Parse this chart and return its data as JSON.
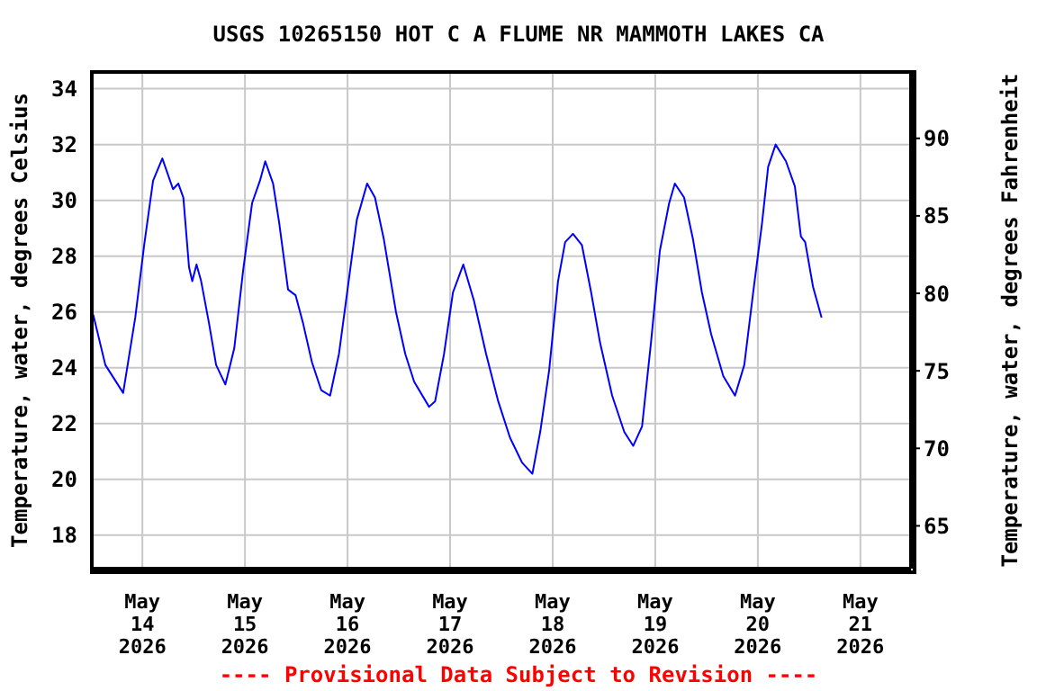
{
  "chart_data": {
    "type": "line",
    "title": "USGS 10265150 HOT C A FLUME NR MAMMOTH LAKES CA",
    "ylabel": "Temperature, water, degrees Celsius",
    "y2label": "Temperature, water, degrees Fahrenheit",
    "annotations": [
      "---- Provisional Data Subject to Revision ----"
    ],
    "x": [
      "2026-05-13T12:30",
      "2026-05-13T15:20",
      "2026-05-13T19:30",
      "2026-05-13T22:20",
      "2026-05-14T00:25",
      "2026-05-14T02:30",
      "2026-05-14T04:40",
      "2026-05-14T07:10",
      "2026-05-14T08:25",
      "2026-05-14T09:35",
      "2026-05-14T10:55",
      "2026-05-14T11:40",
      "2026-05-14T12:40",
      "2026-05-14T13:45",
      "2026-05-14T15:35",
      "2026-05-14T17:15",
      "2026-05-14T19:25",
      "2026-05-14T21:30",
      "2026-05-14T23:35",
      "2026-05-15T01:40",
      "2026-05-15T03:30",
      "2026-05-15T04:45",
      "2026-05-15T06:35",
      "2026-05-15T08:00",
      "2026-05-15T10:05",
      "2026-05-15T11:50",
      "2026-05-15T13:35",
      "2026-05-15T15:40",
      "2026-05-15T17:50",
      "2026-05-15T19:55",
      "2026-05-15T22:00",
      "2026-05-16T00:05",
      "2026-05-16T02:10",
      "2026-05-16T04:35",
      "2026-05-16T06:25",
      "2026-05-16T08:30",
      "2026-05-16T11:20",
      "2026-05-16T13:30",
      "2026-05-16T15:35",
      "2026-05-16T19:05",
      "2026-05-16T20:30",
      "2026-05-16T22:35",
      "2026-05-17T00:40",
      "2026-05-17T03:05",
      "2026-05-17T05:35",
      "2026-05-17T08:25",
      "2026-05-17T11:15",
      "2026-05-17T14:00",
      "2026-05-17T16:50",
      "2026-05-17T19:15",
      "2026-05-17T21:05",
      "2026-05-17T23:10",
      "2026-05-18T01:15",
      "2026-05-18T02:55",
      "2026-05-18T04:45",
      "2026-05-18T06:50",
      "2026-05-18T09:00",
      "2026-05-18T11:05",
      "2026-05-18T13:55",
      "2026-05-18T16:45",
      "2026-05-18T18:50",
      "2026-05-18T20:55",
      "2026-05-18T23:00",
      "2026-05-19T01:05",
      "2026-05-19T03:15",
      "2026-05-19T04:35",
      "2026-05-19T06:45",
      "2026-05-19T08:50",
      "2026-05-19T10:55",
      "2026-05-19T13:05",
      "2026-05-19T15:55",
      "2026-05-19T18:40",
      "2026-05-19T20:50",
      "2026-05-19T22:55",
      "2026-05-20T01:00",
      "2026-05-20T02:25",
      "2026-05-20T04:10",
      "2026-05-20T06:35",
      "2026-05-20T08:40",
      "2026-05-20T10:05",
      "2026-05-20T11:05",
      "2026-05-20T12:55",
      "2026-05-20T14:55"
    ],
    "series": [
      {
        "color": "#0000ff",
        "values": [
          25.9,
          24.1,
          23.1,
          25.8,
          28.4,
          30.7,
          31.5,
          30.4,
          30.6,
          30.1,
          27.6,
          27.1,
          27.7,
          27.1,
          25.6,
          24.1,
          23.4,
          24.7,
          27.5,
          29.9,
          30.7,
          31.4,
          30.6,
          29.2,
          26.8,
          26.6,
          25.6,
          24.2,
          23.2,
          23.0,
          24.5,
          26.9,
          29.3,
          30.6,
          30.1,
          28.6,
          26.0,
          24.5,
          23.5,
          22.6,
          22.8,
          24.5,
          26.7,
          27.7,
          26.4,
          24.5,
          22.8,
          21.5,
          20.6,
          20.2,
          21.7,
          23.9,
          27.1,
          28.5,
          28.8,
          28.4,
          26.7,
          24.9,
          23.0,
          21.7,
          21.2,
          21.9,
          24.9,
          28.2,
          29.9,
          30.6,
          30.1,
          28.6,
          26.7,
          25.2,
          23.7,
          23.0,
          24.1,
          26.7,
          29.2,
          31.2,
          32.0,
          31.4,
          30.5,
          28.7,
          28.5,
          26.9,
          25.8
        ]
      }
    ],
    "xlim": [
      "2026-05-13T12:10",
      "2026-05-21T11:50"
    ],
    "xticks": [
      {
        "value": "2026-05-14",
        "label": "May 14 2026"
      },
      {
        "value": "2026-05-15",
        "label": "May 15 2026"
      },
      {
        "value": "2026-05-16",
        "label": "May 16 2026"
      },
      {
        "value": "2026-05-17",
        "label": "May 17 2026"
      },
      {
        "value": "2026-05-18",
        "label": "May 18 2026"
      },
      {
        "value": "2026-05-19",
        "label": "May 19 2026"
      },
      {
        "value": "2026-05-20",
        "label": "May 20 2026"
      },
      {
        "value": "2026-05-21",
        "label": "May 21 2026"
      }
    ],
    "ylim": [
      16.8,
      34.6
    ],
    "yticks": [
      18,
      20,
      22,
      24,
      26,
      28,
      30,
      32,
      34
    ],
    "y2lim": [
      62.24,
      94.28
    ],
    "y2ticks": [
      65,
      70,
      75,
      80,
      85,
      90
    ],
    "grid": true
  }
}
